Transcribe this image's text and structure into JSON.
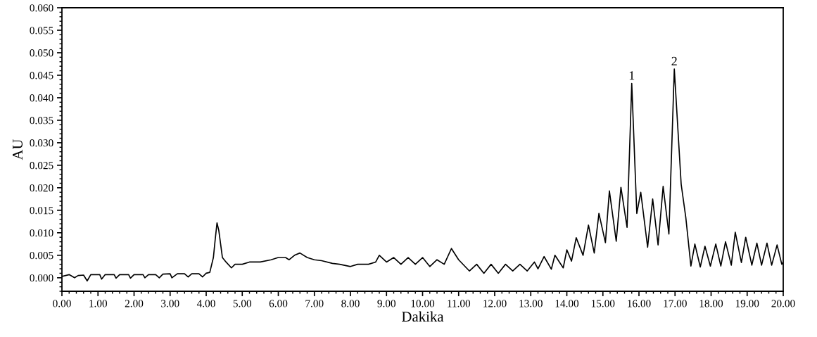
{
  "chart_data": {
    "type": "line",
    "xlabel": "Dakika",
    "ylabel": "AU",
    "xlim": [
      0,
      20
    ],
    "ylim": [
      -0.003,
      0.06
    ],
    "xticks": [
      {
        "value": 0,
        "label": "0.00"
      },
      {
        "value": 1,
        "label": "1.00"
      },
      {
        "value": 2,
        "label": "2.00"
      },
      {
        "value": 3,
        "label": "3.00"
      },
      {
        "value": 4,
        "label": "4.00"
      },
      {
        "value": 5,
        "label": "5.00"
      },
      {
        "value": 6,
        "label": "6.00"
      },
      {
        "value": 7,
        "label": "7.00"
      },
      {
        "value": 8,
        "label": "8.00"
      },
      {
        "value": 9,
        "label": "9.00"
      },
      {
        "value": 10,
        "label": "10.00"
      },
      {
        "value": 11,
        "label": "11.00"
      },
      {
        "value": 12,
        "label": "12.00"
      },
      {
        "value": 13,
        "label": "13.00"
      },
      {
        "value": 14,
        "label": "14.00"
      },
      {
        "value": 15,
        "label": "15.00"
      },
      {
        "value": 16,
        "label": "16.00"
      },
      {
        "value": 17,
        "label": "17.00"
      },
      {
        "value": 18,
        "label": "18.00"
      },
      {
        "value": 19,
        "label": "19.00"
      },
      {
        "value": 20,
        "label": "20.00"
      }
    ],
    "yticks": [
      {
        "value": 0,
        "label": "0.000"
      },
      {
        "value": 0.005,
        "label": "0.005"
      },
      {
        "value": 0.01,
        "label": "0.010"
      },
      {
        "value": 0.015,
        "label": "0.015"
      },
      {
        "value": 0.02,
        "label": "0.020"
      },
      {
        "value": 0.025,
        "label": "0.025"
      },
      {
        "value": 0.03,
        "label": "0.030"
      },
      {
        "value": 0.035,
        "label": "0.035"
      },
      {
        "value": 0.04,
        "label": "0.040"
      },
      {
        "value": 0.045,
        "label": "0.045"
      },
      {
        "value": 0.05,
        "label": "0.050"
      },
      {
        "value": 0.055,
        "label": "0.055"
      },
      {
        "value": 0.06,
        "label": "0.060"
      }
    ],
    "grid": false,
    "marker": "none",
    "line_style": "solid",
    "series": [
      {
        "color": "#000000",
        "x": [
          0,
          0.2,
          0.35,
          0.45,
          0.6,
          0.7,
          0.8,
          1.05,
          1.1,
          1.2,
          1.45,
          1.5,
          1.6,
          1.85,
          1.9,
          2.0,
          2.25,
          2.3,
          2.4,
          2.6,
          2.7,
          2.8,
          3.0,
          3.05,
          3.2,
          3.4,
          3.5,
          3.6,
          3.8,
          3.9,
          4.0,
          4.1,
          4.2,
          4.25,
          4.3,
          4.35,
          4.4,
          4.45,
          4.55,
          4.7,
          4.8,
          5.0,
          5.2,
          5.5,
          5.8,
          6.0,
          6.2,
          6.3,
          6.45,
          6.6,
          6.8,
          7.0,
          7.2,
          7.5,
          7.7,
          8.0,
          8.2,
          8.5,
          8.7,
          8.8,
          9.0,
          9.2,
          9.4,
          9.6,
          9.8,
          10.0,
          10.2,
          10.4,
          10.6,
          10.8,
          11.0,
          11.3,
          11.5,
          11.7,
          11.9,
          12.1,
          12.3,
          12.5,
          12.7,
          12.9,
          13.1,
          13.2,
          13.37,
          13.57,
          13.67,
          13.9,
          14.0,
          14.13,
          14.26,
          14.45,
          14.6,
          14.76,
          14.89,
          15.07,
          15.18,
          15.37,
          15.5,
          15.67,
          15.8,
          15.94,
          16.05,
          16.24,
          16.38,
          16.53,
          16.67,
          16.83,
          16.98,
          17.17,
          17.3,
          17.44,
          17.55,
          17.7,
          17.83,
          17.98,
          18.13,
          18.27,
          18.4,
          18.56,
          18.67,
          18.84,
          18.96,
          19.13,
          19.27,
          19.4,
          19.55,
          19.68,
          19.83,
          19.96,
          20.0
        ],
        "values": [
          0.0003,
          0.0007,
          0.0,
          0.0005,
          0.0006,
          -0.0007,
          0.0007,
          0.0007,
          -0.0003,
          0.0007,
          0.0007,
          -0.0001,
          0.0007,
          0.0007,
          -0.0001,
          0.0007,
          0.0007,
          0.0,
          0.0007,
          0.0007,
          0.0,
          0.0008,
          0.0009,
          0.0,
          0.0009,
          0.0009,
          0.0002,
          0.0009,
          0.0009,
          0.0002,
          0.001,
          0.0012,
          0.0045,
          0.0085,
          0.0122,
          0.0105,
          0.0075,
          0.0045,
          0.0035,
          0.0022,
          0.003,
          0.003,
          0.0035,
          0.0035,
          0.004,
          0.0045,
          0.0045,
          0.004,
          0.005,
          0.0055,
          0.0045,
          0.004,
          0.0038,
          0.0032,
          0.003,
          0.0025,
          0.003,
          0.003,
          0.0035,
          0.005,
          0.0035,
          0.0045,
          0.003,
          0.0045,
          0.003,
          0.0045,
          0.0025,
          0.004,
          0.003,
          0.0065,
          0.004,
          0.0015,
          0.003,
          0.001,
          0.003,
          0.001,
          0.003,
          0.0015,
          0.003,
          0.0015,
          0.0035,
          0.002,
          0.0047,
          0.0019,
          0.005,
          0.0022,
          0.0062,
          0.0037,
          0.0089,
          0.005,
          0.0117,
          0.0055,
          0.0143,
          0.0078,
          0.0193,
          0.0081,
          0.0201,
          0.0112,
          0.0432,
          0.0143,
          0.019,
          0.0068,
          0.0175,
          0.0073,
          0.0203,
          0.0097,
          0.0464,
          0.0208,
          0.0133,
          0.0026,
          0.0075,
          0.0024,
          0.007,
          0.0026,
          0.0075,
          0.0026,
          0.008,
          0.0028,
          0.0101,
          0.0034,
          0.009,
          0.0028,
          0.0077,
          0.0028,
          0.0077,
          0.0028,
          0.0073,
          0.003,
          0.0035
        ]
      }
    ],
    "annotations": [
      {
        "text": "1",
        "x": 15.8,
        "y": 0.0432
      },
      {
        "text": "2",
        "x": 16.98,
        "y": 0.0464
      }
    ]
  }
}
